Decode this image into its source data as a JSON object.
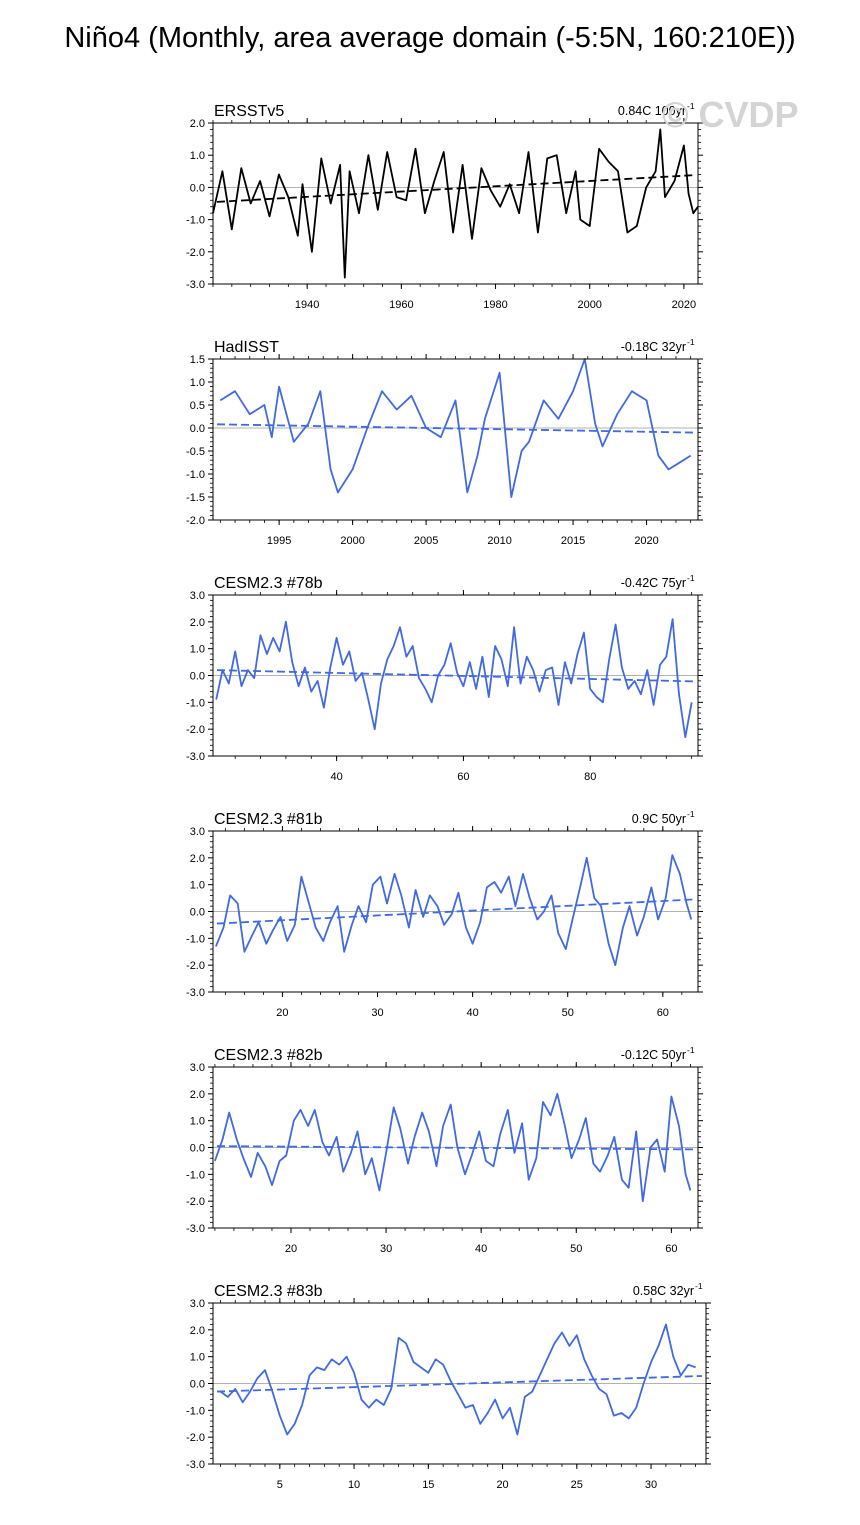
{
  "title": "Niño4 (Monthly, area average domain (-5:5N, 160:210E))",
  "watermark": "© CVDP",
  "colors": {
    "obs": "#000000",
    "model": "#4169E1",
    "zero": "#999999"
  },
  "chart_data": [
    {
      "type": "line",
      "name": "ERSSTv5",
      "trend_label": "0.84C 100yr",
      "trend_sup": "-1",
      "color": "obs",
      "xlim": [
        1920,
        2023
      ],
      "ylim": [
        -3.0,
        2.0
      ],
      "yticks": [
        "2.0",
        "1.0",
        "0.0",
        "-1.0",
        "-2.0",
        "-3.0"
      ],
      "xticks": [
        1940,
        1960,
        1980,
        2000,
        2020
      ],
      "trend": [
        -0.45,
        0.38
      ],
      "series_x": [
        1920,
        1922,
        1924,
        1926,
        1928,
        1930,
        1932,
        1934,
        1936,
        1938,
        1939,
        1941,
        1943,
        1945,
        1947,
        1948,
        1949,
        1951,
        1953,
        1955,
        1957,
        1959,
        1961,
        1963,
        1965,
        1967,
        1969,
        1971,
        1973,
        1975,
        1977,
        1979,
        1981,
        1983,
        1985,
        1987,
        1989,
        1991,
        1993,
        1995,
        1997,
        1998,
        2000,
        2002,
        2004,
        2006,
        2008,
        2010,
        2012,
        2014,
        2015,
        2016,
        2018,
        2020,
        2021,
        2022,
        2023
      ],
      "series_y": [
        -0.8,
        0.5,
        -1.3,
        0.6,
        -0.5,
        0.2,
        -0.9,
        0.4,
        -0.3,
        -1.5,
        0.1,
        -2.0,
        0.9,
        -0.5,
        0.7,
        -2.8,
        0.5,
        -0.8,
        1.0,
        -0.7,
        1.1,
        -0.3,
        -0.4,
        1.2,
        -0.8,
        0.2,
        1.1,
        -1.4,
        0.7,
        -1.6,
        0.6,
        -0.1,
        -0.6,
        0.1,
        -0.8,
        1.1,
        -1.4,
        0.9,
        1.0,
        -0.8,
        0.5,
        -1.0,
        -1.2,
        1.2,
        0.8,
        0.5,
        -1.4,
        -1.2,
        0.0,
        0.5,
        1.8,
        -0.3,
        0.2,
        1.3,
        -0.2,
        -0.8,
        -0.6
      ]
    },
    {
      "type": "line",
      "name": "HadISST",
      "trend_label": "-0.18C 32yr",
      "trend_sup": "-1",
      "color": "model",
      "xlim": [
        1990.5,
        2023.5
      ],
      "ylim": [
        -2.0,
        1.5
      ],
      "yticks": [
        "1.5",
        "1.0",
        "0.5",
        "0.0",
        "-0.5",
        "-1.0",
        "-1.5",
        "-2.0"
      ],
      "xticks": [
        1995,
        2000,
        2005,
        2010,
        2015,
        2020
      ],
      "trend": [
        0.08,
        -0.1
      ],
      "series_x": [
        1991,
        1992,
        1993,
        1994,
        1994.5,
        1995,
        1996,
        1997,
        1997.8,
        1998.5,
        1999,
        2000,
        2001,
        2002,
        2003,
        2004,
        2005,
        2006,
        2007,
        2007.8,
        2008.5,
        2009,
        2010,
        2010.8,
        2011.5,
        2012,
        2013,
        2014,
        2015,
        2015.8,
        2016.5,
        2017,
        2018,
        2019,
        2020,
        2020.8,
        2021.5,
        2022,
        2023
      ],
      "series_y": [
        0.6,
        0.8,
        0.3,
        0.5,
        -0.2,
        0.9,
        -0.3,
        0.1,
        0.8,
        -0.9,
        -1.4,
        -0.9,
        0.0,
        0.8,
        0.4,
        0.7,
        0.0,
        -0.2,
        0.6,
        -1.4,
        -0.6,
        0.2,
        1.2,
        -1.5,
        -0.5,
        -0.3,
        0.6,
        0.2,
        0.8,
        1.5,
        0.1,
        -0.4,
        0.3,
        0.8,
        0.6,
        -0.6,
        -0.9,
        -0.8,
        -0.6
      ]
    },
    {
      "type": "line",
      "name": "CESM2.3 #78b",
      "trend_label": "-0.42C 75yr",
      "trend_sup": "-1",
      "color": "model",
      "xlim": [
        20.5,
        97.0
      ],
      "ylim": [
        -3.0,
        3.0
      ],
      "yticks": [
        "3.0",
        "2.0",
        "1.0",
        "0.0",
        "-1.0",
        "-2.0",
        "-3.0"
      ],
      "xticks": [
        40,
        60,
        80
      ],
      "trend": [
        0.2,
        -0.22
      ],
      "series_x": [
        21,
        22,
        23,
        24,
        25,
        26,
        27,
        28,
        29,
        30,
        31,
        32,
        33,
        34,
        35,
        36,
        37,
        38,
        39,
        40,
        41,
        42,
        43,
        44,
        45,
        46,
        47,
        48,
        49,
        50,
        51,
        52,
        53,
        54,
        55,
        56,
        57,
        58,
        59,
        60,
        61,
        62,
        63,
        64,
        65,
        66,
        67,
        68,
        69,
        70,
        71,
        72,
        73,
        74,
        75,
        76,
        77,
        78,
        79,
        80,
        81,
        82,
        83,
        84,
        85,
        86,
        87,
        88,
        89,
        90,
        91,
        92,
        93,
        94,
        95,
        96
      ],
      "series_y": [
        -0.9,
        0.2,
        -0.3,
        0.9,
        -0.4,
        0.2,
        -0.1,
        1.5,
        0.8,
        1.4,
        0.9,
        2.0,
        0.5,
        -0.4,
        0.3,
        -0.6,
        -0.2,
        -1.2,
        0.3,
        1.4,
        0.4,
        0.9,
        -0.2,
        0.1,
        -0.9,
        -2.0,
        -0.3,
        0.6,
        1.1,
        1.8,
        0.7,
        1.1,
        -0.1,
        -0.5,
        -1.0,
        0.0,
        0.4,
        1.2,
        0.1,
        -0.4,
        0.5,
        -0.5,
        0.7,
        -0.8,
        1.1,
        0.6,
        -0.4,
        1.8,
        -0.3,
        0.7,
        0.2,
        -0.6,
        0.2,
        0.3,
        -1.1,
        0.5,
        -0.3,
        0.8,
        1.6,
        -0.5,
        -0.8,
        -1.0,
        0.6,
        1.9,
        0.3,
        -0.5,
        -0.2,
        -0.7,
        0.2,
        -1.1,
        0.4,
        0.7,
        2.1,
        -0.7,
        -2.3,
        -1.0
      ]
    },
    {
      "type": "line",
      "name": "CESM2.3 #81b",
      "trend_label": "0.9C 50yr",
      "trend_sup": "-1",
      "color": "model",
      "xlim": [
        12.7,
        63.7
      ],
      "ylim": [
        -3.0,
        3.0
      ],
      "yticks": [
        "3.0",
        "2.0",
        "1.0",
        "0.0",
        "-1.0",
        "-2.0",
        "-3.0"
      ],
      "xticks": [
        20,
        30,
        40,
        50,
        60
      ],
      "trend": [
        -0.45,
        0.45
      ],
      "series_x": [
        13,
        13.8,
        14.5,
        15.3,
        16,
        16.8,
        17.5,
        18.3,
        19,
        19.8,
        20.5,
        21.3,
        22,
        22.8,
        23.5,
        24.3,
        25,
        25.8,
        26.5,
        27.3,
        28,
        28.8,
        29.5,
        30.3,
        31,
        31.8,
        32.5,
        33.3,
        34,
        34.8,
        35.5,
        36.3,
        37,
        37.8,
        38.5,
        39.3,
        40,
        40.8,
        41.5,
        42.3,
        43,
        43.8,
        44.5,
        45.3,
        46,
        46.8,
        47.5,
        48.3,
        49,
        49.8,
        50.5,
        51.3,
        52,
        52.8,
        53.5,
        54.3,
        55,
        55.8,
        56.5,
        57.3,
        58,
        58.8,
        59.5,
        60.3,
        61,
        61.8,
        62.5,
        63
      ],
      "series_y": [
        -1.3,
        -0.6,
        0.6,
        0.3,
        -1.5,
        -0.9,
        -0.4,
        -1.2,
        -0.7,
        -0.2,
        -1.1,
        -0.5,
        1.3,
        0.3,
        -0.6,
        -1.1,
        -0.4,
        0.2,
        -1.5,
        -0.5,
        0.2,
        -0.4,
        1.0,
        1.3,
        0.3,
        1.4,
        0.6,
        -0.6,
        0.8,
        -0.2,
        0.6,
        0.2,
        -0.5,
        -0.1,
        0.7,
        -0.6,
        -1.2,
        -0.4,
        0.9,
        1.1,
        0.7,
        1.3,
        0.2,
        1.4,
        0.5,
        -0.3,
        0.0,
        0.6,
        -0.8,
        -1.4,
        -0.3,
        0.9,
        2.0,
        0.5,
        0.2,
        -1.2,
        -2.0,
        -0.6,
        0.2,
        -0.9,
        -0.2,
        0.9,
        -0.3,
        0.5,
        2.1,
        1.4,
        0.3,
        -0.3
      ]
    },
    {
      "type": "line",
      "name": "CESM2.3 #82b",
      "trend_label": "-0.12C 50yr",
      "trend_sup": "-1",
      "color": "model",
      "xlim": [
        11.8,
        62.8
      ],
      "ylim": [
        -3.0,
        3.0
      ],
      "yticks": [
        "3.0",
        "2.0",
        "1.0",
        "0.0",
        "-1.0",
        "-2.0",
        "-3.0"
      ],
      "xticks": [
        20,
        30,
        40,
        50,
        60
      ],
      "trend": [
        0.05,
        -0.07
      ],
      "series_x": [
        12,
        12.8,
        13.5,
        14.3,
        15,
        15.8,
        16.5,
        17.3,
        18,
        18.8,
        19.5,
        20.3,
        21,
        21.8,
        22.5,
        23.3,
        24,
        24.8,
        25.5,
        26.3,
        27,
        27.8,
        28.5,
        29.3,
        30,
        30.8,
        31.5,
        32.3,
        33,
        33.8,
        34.5,
        35.3,
        36,
        36.8,
        37.5,
        38.3,
        39,
        39.8,
        40.5,
        41.3,
        42,
        42.8,
        43.5,
        44.3,
        45,
        45.8,
        46.5,
        47.3,
        48,
        48.8,
        49.5,
        50.3,
        51,
        51.8,
        52.5,
        53.3,
        54,
        54.8,
        55.5,
        56.3,
        57,
        57.8,
        58.5,
        59.3,
        60,
        60.8,
        61.5,
        62
      ],
      "series_y": [
        -0.5,
        0.3,
        1.3,
        0.3,
        -0.4,
        -1.1,
        -0.2,
        -0.7,
        -1.4,
        -0.5,
        -0.3,
        1.0,
        1.4,
        0.8,
        1.4,
        0.2,
        -0.3,
        0.4,
        -0.9,
        -0.2,
        0.6,
        -1.0,
        -0.4,
        -1.6,
        -0.2,
        1.5,
        0.7,
        -0.6,
        0.4,
        1.3,
        0.6,
        -0.7,
        0.8,
        1.6,
        0.0,
        -1.0,
        -0.3,
        0.6,
        -0.5,
        -0.7,
        0.5,
        1.4,
        -0.2,
        0.9,
        -1.2,
        -0.4,
        1.7,
        1.2,
        2.0,
        0.8,
        -0.4,
        0.3,
        1.1,
        -0.6,
        -0.9,
        -0.3,
        0.4,
        -1.2,
        -1.5,
        0.6,
        -2.0,
        0.0,
        0.3,
        -0.9,
        1.9,
        0.8,
        -1.0,
        -1.6
      ]
    },
    {
      "type": "line",
      "name": "CESM2.3 #83b",
      "trend_label": "0.58C 32yr",
      "trend_sup": "-1",
      "color": "model",
      "xlim": [
        0.5,
        33.7
      ],
      "ylim": [
        -3.0,
        3.0
      ],
      "yticks": [
        "3.0",
        "2.0",
        "1.0",
        "0.0",
        "-1.0",
        "-2.0",
        "-3.0"
      ],
      "xticks": [
        5,
        10,
        15,
        20,
        25,
        30
      ],
      "trend": [
        -0.3,
        0.28
      ],
      "series_x": [
        1,
        1.5,
        2,
        2.5,
        3,
        3.5,
        4,
        4.5,
        5,
        5.5,
        6,
        6.5,
        7,
        7.5,
        8,
        8.5,
        9,
        9.5,
        10,
        10.5,
        11,
        11.5,
        12,
        12.5,
        13,
        13.5,
        14,
        14.5,
        15,
        15.5,
        16,
        16.5,
        17,
        17.5,
        18,
        18.5,
        19,
        19.5,
        20,
        20.5,
        21,
        21.5,
        22,
        22.5,
        23,
        23.5,
        24,
        24.5,
        25,
        25.5,
        26,
        26.5,
        27,
        27.5,
        28,
        28.5,
        29,
        29.5,
        30,
        30.5,
        31,
        31.5,
        32,
        32.5,
        33
      ],
      "series_y": [
        -0.3,
        -0.5,
        -0.2,
        -0.7,
        -0.3,
        0.2,
        0.5,
        -0.3,
        -1.2,
        -1.9,
        -1.5,
        -0.8,
        0.3,
        0.6,
        0.5,
        0.9,
        0.7,
        1.0,
        0.4,
        -0.6,
        -0.9,
        -0.6,
        -0.8,
        -0.2,
        1.7,
        1.5,
        0.8,
        0.6,
        0.4,
        0.9,
        0.7,
        0.1,
        -0.4,
        -0.9,
        -0.8,
        -1.5,
        -1.1,
        -0.6,
        -1.3,
        -0.9,
        -1.9,
        -0.5,
        -0.3,
        0.3,
        0.9,
        1.5,
        1.9,
        1.4,
        1.8,
        0.9,
        0.3,
        -0.2,
        -0.4,
        -1.2,
        -1.1,
        -1.3,
        -0.9,
        0.0,
        0.8,
        1.4,
        2.2,
        1.0,
        0.3,
        0.7,
        0.6
      ]
    }
  ]
}
